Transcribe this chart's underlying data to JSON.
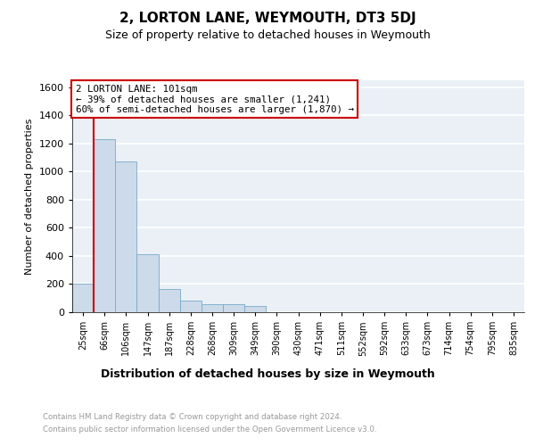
{
  "title": "2, LORTON LANE, WEYMOUTH, DT3 5DJ",
  "subtitle": "Size of property relative to detached houses in Weymouth",
  "xlabel": "Distribution of detached houses by size in Weymouth",
  "ylabel": "Number of detached properties",
  "bar_color": "#ccdaea",
  "bar_edge_color": "#7aaac8",
  "background_color": "#eaf0f6",
  "grid_color": "#ffffff",
  "annotation_box_color": "#cc0000",
  "annotation_line_color": "#cc0000",
  "categories": [
    "25sqm",
    "66sqm",
    "106sqm",
    "147sqm",
    "187sqm",
    "228sqm",
    "268sqm",
    "309sqm",
    "349sqm",
    "390sqm",
    "430sqm",
    "471sqm",
    "511sqm",
    "552sqm",
    "592sqm",
    "633sqm",
    "673sqm",
    "714sqm",
    "754sqm",
    "795sqm",
    "835sqm"
  ],
  "values": [
    200,
    1230,
    1070,
    410,
    165,
    80,
    60,
    55,
    45,
    0,
    0,
    0,
    0,
    0,
    0,
    0,
    0,
    0,
    0,
    0,
    0
  ],
  "annotation_line1": "2 LORTON LANE: 101sqm",
  "annotation_line2": "← 39% of detached houses are smaller (1,241)",
  "annotation_line3": "60% of semi-detached houses are larger (1,870) →",
  "ylim": [
    0,
    1650
  ],
  "yticks": [
    0,
    200,
    400,
    600,
    800,
    1000,
    1200,
    1400,
    1600
  ],
  "footer_line1": "Contains HM Land Registry data © Crown copyright and database right 2024.",
  "footer_line2": "Contains public sector information licensed under the Open Government Licence v3.0."
}
